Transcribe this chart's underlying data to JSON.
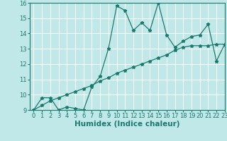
{
  "line1_x": [
    0,
    1,
    2,
    3,
    4,
    5,
    6,
    7,
    8,
    9,
    10,
    11,
    12,
    13,
    14,
    15,
    16,
    17,
    18,
    19,
    20,
    21,
    22,
    23
  ],
  "line1_y": [
    9.0,
    9.8,
    9.8,
    9.0,
    9.2,
    9.1,
    9.0,
    10.5,
    11.2,
    13.0,
    15.8,
    15.5,
    14.2,
    14.7,
    14.2,
    16.0,
    13.9,
    13.1,
    13.5,
    13.8,
    13.9,
    14.6,
    12.2,
    13.3
  ],
  "line2_x": [
    0,
    1,
    2,
    3,
    4,
    5,
    6,
    7,
    8,
    9,
    10,
    11,
    12,
    13,
    14,
    15,
    16,
    17,
    18,
    19,
    20,
    21,
    22,
    23
  ],
  "line2_y": [
    9.0,
    9.3,
    9.6,
    9.8,
    10.0,
    10.2,
    10.4,
    10.6,
    10.9,
    11.1,
    11.4,
    11.6,
    11.8,
    12.0,
    12.2,
    12.4,
    12.6,
    12.9,
    13.1,
    13.2,
    13.2,
    13.2,
    13.3,
    13.3
  ],
  "color": "#1a7a6e",
  "bg_color": "#c0e8e8",
  "grid_color": "#ffffff",
  "xlabel": "Humidex (Indice chaleur)",
  "ylim": [
    9,
    16
  ],
  "xlim": [
    -0.5,
    23
  ],
  "yticks": [
    9,
    10,
    11,
    12,
    13,
    14,
    15,
    16
  ],
  "xticks": [
    0,
    1,
    2,
    3,
    4,
    5,
    6,
    7,
    8,
    9,
    10,
    11,
    12,
    13,
    14,
    15,
    16,
    17,
    18,
    19,
    20,
    21,
    22,
    23
  ],
  "marker": "*",
  "markersize": 3.5,
  "linewidth": 0.9,
  "xlabel_fontsize": 7.5,
  "tick_fontsize": 6,
  "fig_width": 3.2,
  "fig_height": 2.0,
  "fig_dpi": 100
}
